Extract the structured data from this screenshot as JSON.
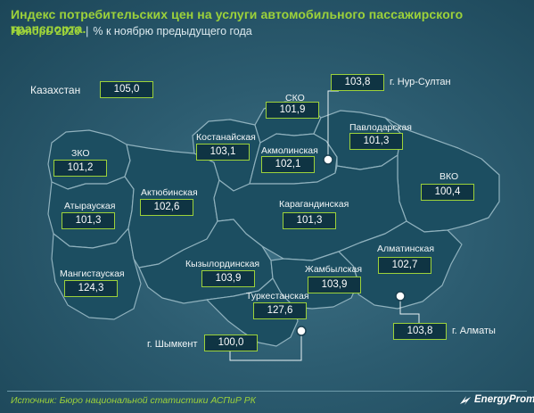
{
  "header": {
    "title": "Индекс потребительских цен на услуги автомобильного пассажирского транспорта.",
    "period": "Ноябрь 2020",
    "separator": "|",
    "unit": "% к ноябрю предыдущего  года"
  },
  "country": {
    "label": "Казахстан",
    "value": "105,0"
  },
  "regions": [
    {
      "name": "ЗКО",
      "value": "101,2"
    },
    {
      "name": "Атырауская",
      "value": "101,3"
    },
    {
      "name": "Мангистауская",
      "value": "124,3"
    },
    {
      "name": "Актюбинская",
      "value": "102,6"
    },
    {
      "name": "Костанайская",
      "value": "103,1"
    },
    {
      "name": "СКО",
      "value": "101,9"
    },
    {
      "name": "Акмолинская",
      "value": "102,1"
    },
    {
      "name": "Павлодарская",
      "value": "101,3"
    },
    {
      "name": "ВКО",
      "value": "100,4"
    },
    {
      "name": "Карагандинская",
      "value": "101,3"
    },
    {
      "name": "Кызылординская",
      "value": "103,9"
    },
    {
      "name": "Жамбылская",
      "value": "103,9"
    },
    {
      "name": "Алматинская",
      "value": "102,7"
    },
    {
      "name": "Туркестанская",
      "value": "127,6"
    }
  ],
  "cities": [
    {
      "name": "г. Нур-Султан",
      "value": "103,8"
    },
    {
      "name": "г. Алматы",
      "value": "103,8"
    },
    {
      "name": "г. Шымкент",
      "value": "100,0"
    }
  ],
  "footer": {
    "source": "Источник: Бюро национальной  статистики АСПиР РК",
    "brand": "EnergyProm"
  },
  "colors": {
    "accent": "#9dd23a",
    "region_fill": "#1c4e61",
    "region_border": "#8fb1bd",
    "value_box_fill": "#0f3443",
    "background": "#2c5c70"
  },
  "icons": [
    "city-marker-icon",
    "energyprom-logo-icon"
  ]
}
